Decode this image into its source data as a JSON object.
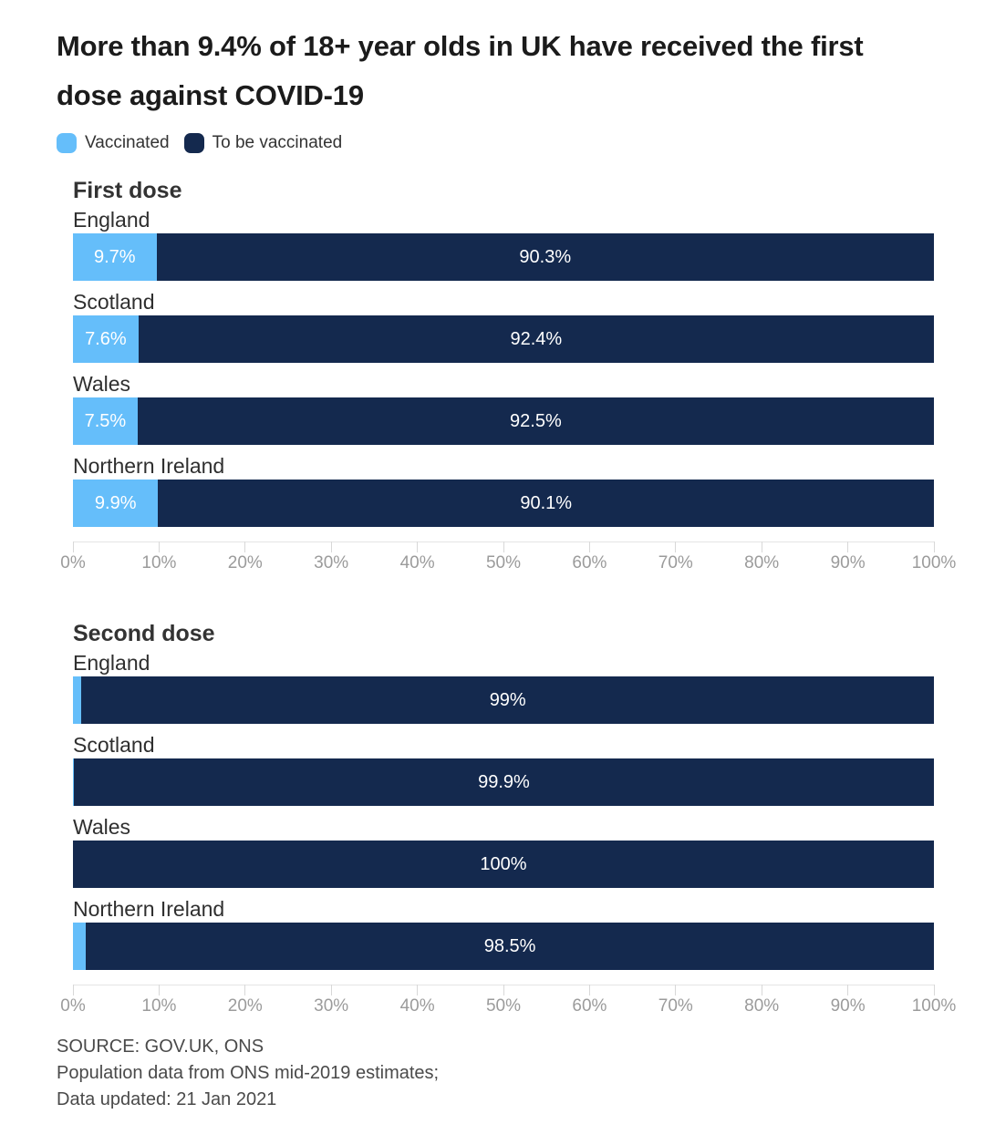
{
  "title": {
    "text": "More than 9.4% of 18+ year olds in UK have received the first dose against COVID-19",
    "lines": [
      "More than 9.4% of 18+ year olds in UK have received the first",
      "dose against COVID-19"
    ]
  },
  "legend": {
    "items": [
      {
        "label": "Vaccinated",
        "color": "#65befa"
      },
      {
        "label": "To be vaccinated",
        "color": "#14294e"
      }
    ]
  },
  "colors": {
    "vaccinated": "#65befa",
    "to_be_vaccinated": "#14294e",
    "bar_label_text": "#ffffff",
    "axis_text": "#9b9b9b",
    "axis_line": "#e4e4e4",
    "title_text": "#1b1b1b",
    "category_text": "#2f2f2f",
    "footer_text": "#4a4a4a",
    "background": "#ffffff"
  },
  "chart_data": [
    {
      "type": "bar",
      "variant": "horizontal-stacked",
      "title": "First dose",
      "categories": [
        "England",
        "Scotland",
        "Wales",
        "Northern Ireland"
      ],
      "series": [
        {
          "name": "Vaccinated",
          "color": "#65befa",
          "values": [
            9.7,
            7.6,
            7.5,
            9.9
          ],
          "labels": [
            "9.7%",
            "7.6%",
            "7.5%",
            "9.9%"
          ]
        },
        {
          "name": "To be vaccinated",
          "color": "#14294e",
          "values": [
            90.3,
            92.4,
            92.5,
            90.1
          ],
          "labels": [
            "90.3%",
            "92.4%",
            "92.5%",
            "90.1%"
          ]
        }
      ],
      "xlim": [
        0,
        100
      ],
      "x_tick_labels": [
        "0%",
        "10%",
        "20%",
        "30%",
        "40%",
        "50%",
        "60%",
        "70%",
        "80%",
        "90%",
        "100%"
      ],
      "grid": false,
      "legend_position": "top"
    },
    {
      "type": "bar",
      "variant": "horizontal-stacked",
      "title": "Second dose",
      "categories": [
        "England",
        "Scotland",
        "Wales",
        "Northern Ireland"
      ],
      "series": [
        {
          "name": "Vaccinated",
          "color": "#65befa",
          "values": [
            1,
            0.1,
            0,
            1.5
          ],
          "labels": [
            "",
            "",
            "",
            ""
          ]
        },
        {
          "name": "To be vaccinated",
          "color": "#14294e",
          "values": [
            99,
            99.9,
            100,
            98.5
          ],
          "labels": [
            "99%",
            "99.9%",
            "100%",
            "98.5%"
          ]
        }
      ],
      "xlim": [
        0,
        100
      ],
      "x_tick_labels": [
        "0%",
        "10%",
        "20%",
        "30%",
        "40%",
        "50%",
        "60%",
        "70%",
        "80%",
        "90%",
        "100%"
      ],
      "grid": false,
      "legend_position": "top"
    }
  ],
  "footer": {
    "lines": [
      "SOURCE: GOV.UK, ONS",
      "Population data from ONS mid-2019 estimates;",
      "Data updated: 21 Jan 2021"
    ]
  }
}
